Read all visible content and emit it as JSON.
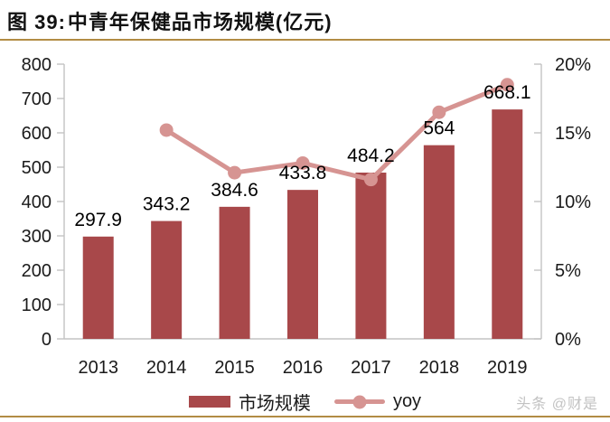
{
  "figure": {
    "number_label": "图 39:",
    "title": "中青年保健品市场规模(亿元)",
    "watermark": "头条 @财是",
    "accent_color": "#B28C44"
  },
  "chart_data": {
    "type": "bar",
    "subtype": "combo bar + line, dual y-axis",
    "title": "中青年保健品市场规模(亿元)",
    "categories": [
      "2013",
      "2014",
      "2015",
      "2016",
      "2017",
      "2018",
      "2019"
    ],
    "series": [
      {
        "name": "市场规模",
        "type": "bar",
        "axis": "left",
        "color": "#A8484A",
        "values": [
          297.9,
          343.2,
          384.6,
          433.8,
          484.2,
          564,
          668.1
        ],
        "data_labels": [
          "297.9",
          "343.2",
          "384.6",
          "433.8",
          "484.2",
          "564",
          "668.1"
        ]
      },
      {
        "name": "yoy",
        "type": "line",
        "axis": "right",
        "color": "#D69492",
        "unit": "%",
        "values": [
          null,
          15.2,
          12.1,
          12.8,
          11.6,
          16.5,
          18.5
        ]
      }
    ],
    "left_axis": {
      "min": 0,
      "max": 800,
      "step": 100,
      "tick_labels": [
        "0",
        "100",
        "200",
        "300",
        "400",
        "500",
        "600",
        "700",
        "800"
      ]
    },
    "right_axis": {
      "min": 0,
      "max": 20,
      "step": 5,
      "tick_labels": [
        "0%",
        "5%",
        "10%",
        "15%",
        "20%"
      ]
    },
    "legend_position": "bottom",
    "grid": false,
    "axis_line_color": "#C3C3C3",
    "text_color": "#1A1A1A"
  }
}
